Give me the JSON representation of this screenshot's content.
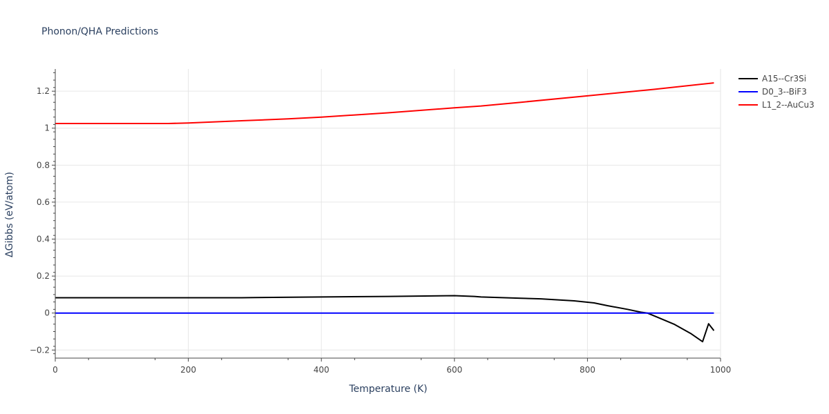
{
  "chart_data": {
    "type": "line",
    "title": "Phonon/QHA Predictions",
    "xlabel": "Temperature (K)",
    "ylabel": "ΔGibbs (eV/atom)",
    "xlim": [
      0,
      1000
    ],
    "ylim": [
      -0.24,
      1.32
    ],
    "xticks": [
      0,
      200,
      400,
      600,
      800,
      1000
    ],
    "yticks": [
      -0.2,
      0,
      0.2,
      0.4,
      0.6,
      0.8,
      1,
      1.2
    ],
    "xtick_labels": [
      "0",
      "200",
      "400",
      "600",
      "800",
      "1000"
    ],
    "ytick_labels": [
      "−0.2",
      "0",
      "0.2",
      "0.4",
      "0.6",
      "0.8",
      "1",
      "1.2"
    ],
    "grid": true,
    "legend_position": "top-right",
    "series": [
      {
        "name": "A15--Cr3Si",
        "color": "#000000",
        "x": [
          0,
          100,
          200,
          280,
          300,
          400,
          500,
          600,
          630,
          640,
          700,
          730,
          780,
          810,
          830,
          860,
          880,
          890,
          900,
          910,
          930,
          955,
          973,
          982,
          990
        ],
        "y": [
          0.083,
          0.083,
          0.083,
          0.083,
          0.084,
          0.087,
          0.09,
          0.094,
          0.09,
          0.087,
          0.08,
          0.077,
          0.066,
          0.055,
          0.04,
          0.02,
          0.005,
          0.0,
          -0.015,
          -0.03,
          -0.06,
          -0.11,
          -0.155,
          -0.058,
          -0.095
        ]
      },
      {
        "name": "D0_3--BiF3",
        "color": "#0000ff",
        "x": [
          0,
          990
        ],
        "y": [
          0,
          0
        ]
      },
      {
        "name": "L1_2--AuCu3",
        "color": "#ff0000",
        "x": [
          0,
          100,
          170,
          200,
          280,
          350,
          400,
          500,
          600,
          640,
          700,
          800,
          900,
          990
        ],
        "y": [
          1.025,
          1.025,
          1.025,
          1.028,
          1.04,
          1.05,
          1.06,
          1.083,
          1.11,
          1.12,
          1.14,
          1.175,
          1.21,
          1.245
        ]
      }
    ]
  }
}
